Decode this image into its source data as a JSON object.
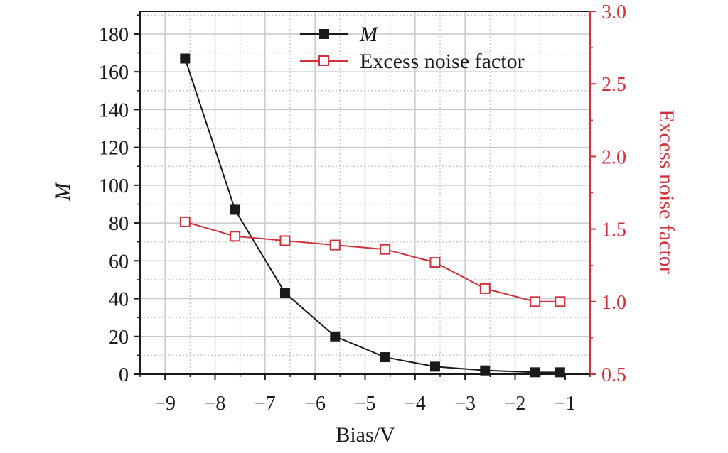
{
  "chart_data": {
    "type": "line",
    "xlabel": "Bias/V",
    "ylabel_left": "M",
    "ylabel_right": "Excess noise factor",
    "xlim": [
      -9.5,
      -0.5
    ],
    "ylim_left": [
      0,
      192
    ],
    "ylim_right": [
      0.5,
      3.0
    ],
    "x_ticks": [
      "−9",
      "−8",
      "−7",
      "−6",
      "−5",
      "−4",
      "−3",
      "−2",
      "−1"
    ],
    "x_tick_values": [
      -9,
      -8,
      -7,
      -6,
      -5,
      -4,
      -3,
      -2,
      -1
    ],
    "y_left_ticks": [
      "0",
      "20",
      "40",
      "60",
      "80",
      "100",
      "120",
      "140",
      "160",
      "180"
    ],
    "y_left_tick_values": [
      0,
      20,
      40,
      60,
      80,
      100,
      120,
      140,
      160,
      180
    ],
    "y_right_ticks": [
      "0.5",
      "1.0",
      "1.5",
      "2.0",
      "2.5",
      "3.0"
    ],
    "y_right_tick_values": [
      0.5,
      1.0,
      1.5,
      2.0,
      2.5,
      3.0
    ],
    "grid": true,
    "legend_position": "top-right",
    "series": [
      {
        "name": "M",
        "axis": "left",
        "color": "#1a1a1a",
        "marker": "filled-square",
        "x": [
          -8.6,
          -7.6,
          -6.6,
          -5.6,
          -4.6,
          -3.6,
          -2.6,
          -1.6,
          -1.1
        ],
        "values": [
          167,
          87,
          43,
          20,
          9,
          4,
          2,
          1,
          1
        ]
      },
      {
        "name": "Excess noise factor",
        "axis": "right",
        "color": "#d0323c",
        "marker": "open-square",
        "x": [
          -8.6,
          -7.6,
          -6.6,
          -5.6,
          -4.6,
          -3.6,
          -2.6,
          -1.6,
          -1.1
        ],
        "values": [
          1.55,
          1.45,
          1.42,
          1.39,
          1.36,
          1.27,
          1.09,
          1.0,
          1.0
        ]
      }
    ]
  }
}
